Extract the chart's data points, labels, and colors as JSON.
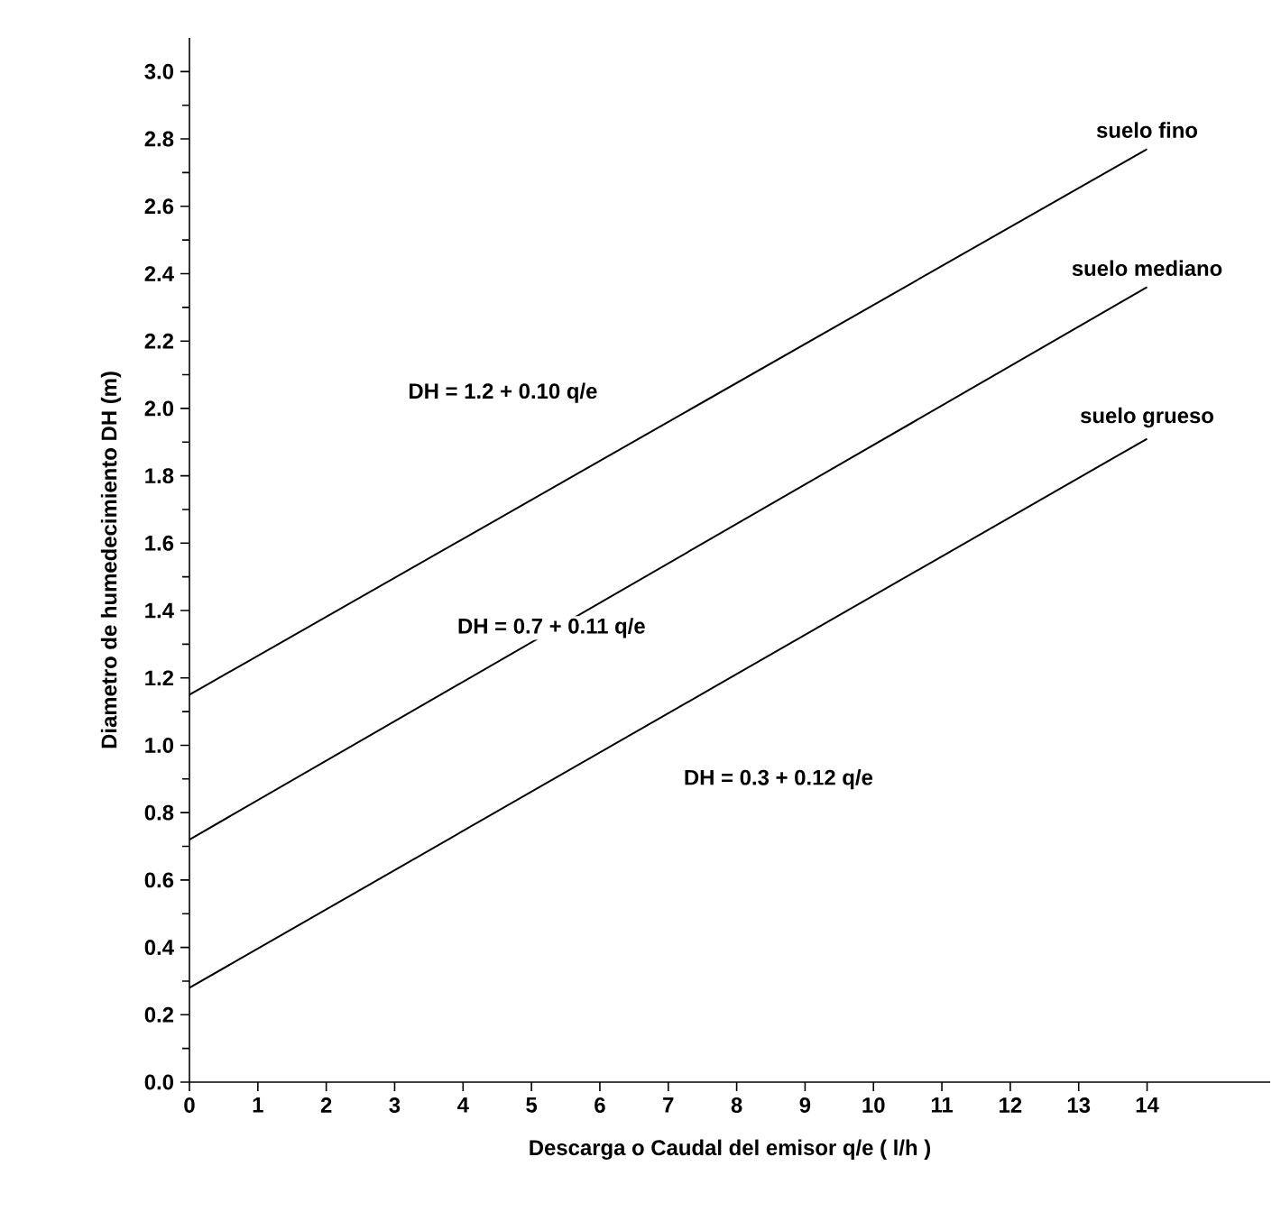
{
  "chart_data": {
    "type": "line",
    "xlabel": "Descarga o Caudal del emisor q/e ( l/h )",
    "ylabel": "Diametro de humedecimiento  DH (m)",
    "xlim": [
      0,
      15.8
    ],
    "ylim": [
      0,
      3.1
    ],
    "xticks": [
      0,
      1,
      2,
      3,
      4,
      5,
      6,
      7,
      8,
      9,
      10,
      11,
      12,
      13,
      14
    ],
    "yticks": [
      {
        "value": 0,
        "label": "0.0"
      },
      {
        "value": 0.2,
        "label": "0.2"
      },
      {
        "value": 0.4,
        "label": "0.4"
      },
      {
        "value": 0.6,
        "label": "0.6"
      },
      {
        "value": 0.8,
        "label": "0.8"
      },
      {
        "value": 1,
        "label": "1.0"
      },
      {
        "value": 1.2,
        "label": "1.2"
      },
      {
        "value": 1.4,
        "label": "1.4"
      },
      {
        "value": 1.6,
        "label": "1.6"
      },
      {
        "value": 1.8,
        "label": "1.8"
      },
      {
        "value": 2,
        "label": "2.0"
      },
      {
        "value": 2.2,
        "label": "2.2"
      },
      {
        "value": 2.4,
        "label": "2.4"
      },
      {
        "value": 2.6,
        "label": "2.6"
      },
      {
        "value": 2.8,
        "label": "2.8"
      },
      {
        "value": 3,
        "label": "3.0"
      }
    ],
    "x": [
      0,
      14
    ],
    "series": [
      {
        "name": "suelo fino",
        "color": "#000000",
        "values": [
          1.15,
          2.77
        ]
      },
      {
        "name": "suelo mediano",
        "color": "#000000",
        "values": [
          0.72,
          2.36
        ]
      },
      {
        "name": "suelo grueso",
        "color": "#000000",
        "values": [
          0.28,
          1.91
        ]
      }
    ],
    "annotations": [
      "DH = 1.2 + 0.10 q/e",
      "DH = 0.7 + 0.11 q/e",
      "DH = 0.3 + 0.12 q/e"
    ],
    "grid": false,
    "legend": false,
    "marker": "none",
    "line_style": "solid"
  }
}
